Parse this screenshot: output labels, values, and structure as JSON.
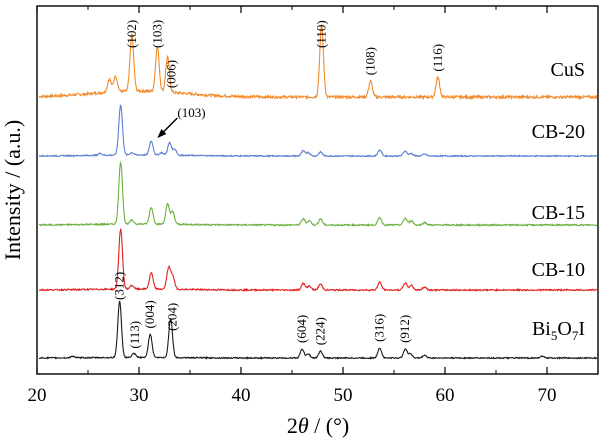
{
  "chart_data": {
    "type": "line",
    "title": "",
    "xlabel_parts": [
      "2",
      "θ",
      " / (°)"
    ],
    "ylabel": "Intensity / (a.u.)",
    "xlim": [
      20,
      75
    ],
    "xticks": [
      20,
      30,
      40,
      50,
      60,
      70
    ],
    "grid": false,
    "y_ticks_shown": false,
    "series": [
      {
        "name": "CuS",
        "color": "#f08b2d",
        "peaks": [
          [
            27.1,
            0.18
          ],
          [
            27.7,
            0.22
          ],
          [
            29.3,
            0.78
          ],
          [
            31.8,
            0.62
          ],
          [
            32.8,
            0.48
          ],
          [
            47.9,
            1.0
          ],
          [
            52.7,
            0.22
          ],
          [
            59.3,
            0.27
          ]
        ],
        "peak_labels": [
          {
            "text": "(102)",
            "x": 29.3
          },
          {
            "text": "(103)",
            "x": 31.8
          },
          {
            "text": "(006)",
            "x": 33.2
          },
          {
            "text": "(110)",
            "x": 47.9
          },
          {
            "text": "(108)",
            "x": 52.7
          },
          {
            "text": "(116)",
            "x": 59.3
          }
        ]
      },
      {
        "name": "CB-20",
        "color": "#5b7fd0",
        "peaks": [
          [
            26.2,
            0.04
          ],
          [
            28.2,
            1.0
          ],
          [
            29.3,
            0.05
          ],
          [
            31.2,
            0.28
          ],
          [
            32.2,
            0.05
          ],
          [
            33.0,
            0.25
          ],
          [
            33.5,
            0.12
          ],
          [
            46.1,
            0.1
          ],
          [
            46.6,
            0.07
          ],
          [
            47.8,
            0.08
          ],
          [
            53.6,
            0.12
          ],
          [
            56.1,
            0.1
          ],
          [
            56.7,
            0.05
          ],
          [
            58.0,
            0.04
          ]
        ],
        "callout": {
          "text": "(103)",
          "x": 31.8
        }
      },
      {
        "name": "CB-15",
        "color": "#6ab040",
        "peaks": [
          [
            28.2,
            1.0
          ],
          [
            29.3,
            0.06
          ],
          [
            31.2,
            0.27
          ],
          [
            32.8,
            0.32
          ],
          [
            33.3,
            0.2
          ],
          [
            46.1,
            0.1
          ],
          [
            46.7,
            0.07
          ],
          [
            47.8,
            0.1
          ],
          [
            53.6,
            0.12
          ],
          [
            56.1,
            0.11
          ],
          [
            56.7,
            0.07
          ],
          [
            58.0,
            0.04
          ]
        ]
      },
      {
        "name": "CB-10",
        "color": "#e02020",
        "peaks": [
          [
            28.2,
            1.0
          ],
          [
            29.3,
            0.06
          ],
          [
            31.2,
            0.27
          ],
          [
            32.9,
            0.35
          ],
          [
            33.3,
            0.22
          ],
          [
            46.1,
            0.11
          ],
          [
            46.7,
            0.07
          ],
          [
            47.8,
            0.1
          ],
          [
            53.6,
            0.13
          ],
          [
            56.1,
            0.12
          ],
          [
            56.7,
            0.08
          ],
          [
            58.0,
            0.05
          ]
        ]
      },
      {
        "name": "Bi5O7I",
        "name_parts": [
          [
            "Bi",
            false
          ],
          [
            "5",
            true
          ],
          [
            "O",
            false
          ],
          [
            "7",
            true
          ],
          [
            "I",
            false
          ]
        ],
        "color": "#1a1a1a",
        "peaks": [
          [
            23.5,
            0.03
          ],
          [
            28.1,
            1.0
          ],
          [
            29.5,
            0.07
          ],
          [
            31.1,
            0.42
          ],
          [
            33.1,
            0.7
          ],
          [
            46.0,
            0.16
          ],
          [
            46.6,
            0.07
          ],
          [
            47.8,
            0.12
          ],
          [
            53.6,
            0.18
          ],
          [
            56.1,
            0.16
          ],
          [
            56.6,
            0.08
          ],
          [
            58.0,
            0.05
          ],
          [
            69.5,
            0.03
          ]
        ],
        "peak_labels": [
          {
            "text": "(312)",
            "x": 28.1
          },
          {
            "text": "(113)",
            "x": 29.6
          },
          {
            "text": "(004)",
            "x": 31.1
          },
          {
            "text": "(204)",
            "x": 33.3
          },
          {
            "text": "(604)",
            "x": 46.0
          },
          {
            "text": "(224)",
            "x": 47.8
          },
          {
            "text": "(316)",
            "x": 53.6
          },
          {
            "text": "(912)",
            "x": 56.1
          }
        ]
      }
    ]
  }
}
